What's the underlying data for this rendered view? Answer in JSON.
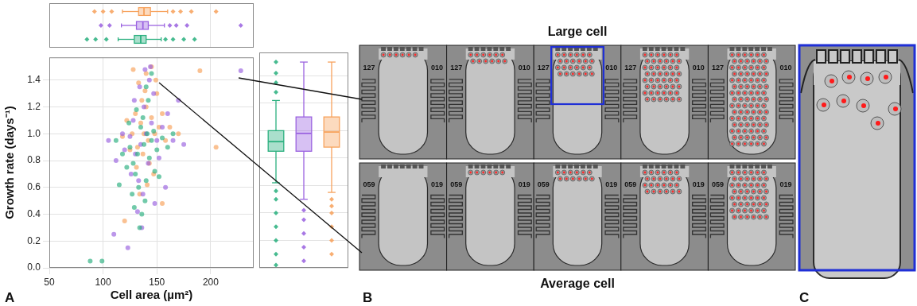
{
  "chart_data": [
    {
      "type": "scatter",
      "xlabel": "Cell area (µm²)",
      "ylabel": "Growth rate (days⁻¹)",
      "xlim": [
        50,
        240
      ],
      "xticks": [
        50,
        100,
        150,
        200
      ],
      "ylim": [
        0,
        1.57
      ],
      "yticks": [
        {
          "value": 0,
          "label": "0.0"
        },
        0.2,
        0.4,
        0.6,
        0.8,
        {
          "value": 1,
          "label": "1.0"
        },
        1.2,
        1.4
      ],
      "grid": true,
      "series": [
        {
          "color": "#2bb07f",
          "marker": "circle",
          "x": [
            138,
            132,
            141,
            128,
            145,
            135,
            130,
            150,
            125,
            140,
            137,
            143,
            133,
            147,
            122,
            139,
            131,
            155,
            118,
            136,
            142,
            127,
            160,
            134,
            148,
            112,
            140,
            129,
            99,
            88,
            115,
            145,
            152,
            124,
            165
          ],
          "values": [
            0.92,
            0.85,
            1.0,
            0.78,
            0.95,
            1.05,
            0.7,
            0.88,
            0.9,
            0.65,
            1.12,
            0.82,
            0.6,
            1.02,
            0.75,
            0.5,
            1.18,
            0.97,
            0.85,
            0.4,
            1.25,
            0.55,
            0.9,
            0.3,
            0.72,
            0.95,
            1.35,
            0.45,
            0.05,
            0.05,
            0.62,
            1.45,
            0.68,
            1.08,
            1.0
          ]
        },
        {
          "color": "#9b63e0",
          "marker": "circle",
          "x": [
            140,
            135,
            145,
            130,
            138,
            142,
            128,
            150,
            133,
            147,
            125,
            137,
            155,
            120,
            143,
            132,
            160,
            118,
            139,
            126,
            152,
            136,
            165,
            112,
            144,
            129,
            158,
            110,
            175,
            228,
            170,
            123,
            148,
            134,
            105
          ],
          "values": [
            1.0,
            0.92,
            1.08,
            0.85,
            1.2,
            0.78,
            1.1,
            0.95,
            0.65,
            1.3,
            0.98,
            0.55,
            1.05,
            0.88,
            1.4,
            0.42,
            1.15,
            1.0,
            1.48,
            0.7,
            0.82,
            0.3,
            0.95,
            0.8,
            1.5,
            1.25,
            0.6,
            0.25,
            0.92,
            1.47,
            1.25,
            0.15,
            0.48,
            1.35,
            0.95
          ]
        },
        {
          "color": "#f7a25c",
          "marker": "circle",
          "x": [
            138,
            142,
            135,
            145,
            132,
            140,
            148,
            130,
            137,
            150,
            127,
            143,
            133,
            152,
            125,
            140,
            147,
            136,
            155,
            122,
            141,
            158,
            128,
            145,
            118,
            162,
            134,
            149,
            131,
            139,
            155,
            190,
            205,
            120,
            170
          ],
          "values": [
            1.0,
            0.95,
            1.08,
            1.12,
            0.9,
            1.2,
            1.0,
            1.15,
            0.85,
            1.3,
            1.0,
            0.78,
            1.38,
            1.05,
            0.88,
            1.45,
            0.7,
            1.25,
            1.15,
            1.1,
            0.62,
            0.95,
            1.48,
            1.5,
            0.98,
            1.05,
            0.55,
            1.4,
            0.75,
            1.32,
            0.48,
            1.47,
            0.9,
            0.35,
            1.0
          ]
        }
      ]
    },
    {
      "type": "boxplot",
      "orientation": "horizontal",
      "xlim": [
        50,
        240
      ],
      "xticks": [
        50,
        100,
        150,
        200
      ],
      "tick_labels": false,
      "grid": true,
      "series": [
        {
          "color": "#2bb07f",
          "marker": "diamond",
          "whisker_low": 114,
          "q1": 129,
          "median": 135,
          "q3": 140,
          "whisker_high": 154,
          "outliers": [
            85,
            93,
            103,
            158,
            165,
            175,
            185
          ]
        },
        {
          "color": "#9b63e0",
          "marker": "diamond",
          "whisker_low": 117,
          "q1": 131,
          "median": 137,
          "q3": 142,
          "whisker_high": 157,
          "outliers": [
            98,
            106,
            162,
            168,
            178,
            228
          ]
        },
        {
          "color": "#f7a25c",
          "marker": "diamond",
          "whisker_low": 118,
          "q1": 133,
          "median": 138,
          "q3": 144,
          "whisker_high": 160,
          "outliers": [
            92,
            100,
            108,
            165,
            172,
            182,
            205
          ]
        }
      ]
    },
    {
      "type": "boxplot",
      "ylim": [
        0,
        1.57
      ],
      "yticks": [
        {
          "value": 0,
          "label": "0.0"
        },
        0.2,
        0.4,
        0.6,
        0.8,
        {
          "value": 1,
          "label": "1.0"
        },
        1.2,
        1.4
      ],
      "tick_labels": false,
      "grid": true,
      "series": [
        {
          "color": "#2bb07f",
          "marker": "diamond",
          "whisker_low": 0.62,
          "q1": 0.85,
          "median": 0.92,
          "q3": 1.0,
          "whisker_high": 1.22,
          "outliers": [
            0.02,
            0.1,
            0.2,
            0.3,
            0.4,
            0.5,
            0.56,
            1.28,
            1.35,
            1.42,
            1.5
          ]
        },
        {
          "color": "#9b63e0",
          "marker": "diamond",
          "whisker_low": 0.5,
          "q1": 0.85,
          "median": 0.98,
          "q3": 1.1,
          "whisker_high": 1.5,
          "outliers": [
            0.05,
            0.15,
            0.25,
            0.35,
            0.42
          ]
        },
        {
          "color": "#f7a25c",
          "marker": "diamond",
          "whisker_low": 0.55,
          "q1": 0.88,
          "median": 0.99,
          "q3": 1.1,
          "whisker_high": 1.5,
          "outliers": [
            0.1,
            0.2,
            0.3,
            0.4,
            0.45,
            0.5
          ]
        }
      ]
    }
  ],
  "panels": [
    {
      "label": "A"
    },
    {
      "label": "B",
      "rows": [
        {
          "title": "Large cell",
          "ids": [
            "127",
            "010"
          ]
        },
        {
          "title": "Average cell",
          "ids": [
            "059",
            "019"
          ]
        }
      ]
    },
    {
      "label": "C"
    }
  ]
}
